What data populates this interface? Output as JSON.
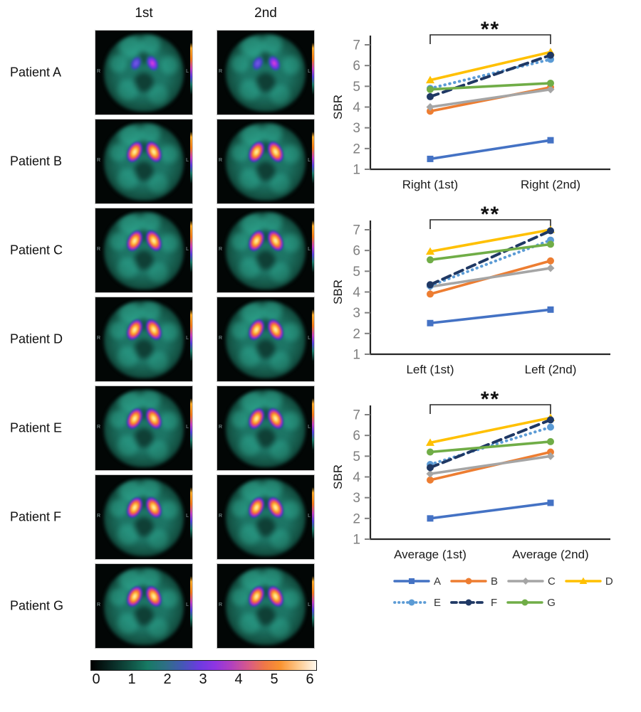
{
  "figure": {
    "scan_columns": [
      "1st",
      "2nd"
    ],
    "patients": [
      {
        "label": "Patient A",
        "uptake": "low"
      },
      {
        "label": "Patient B",
        "uptake": "high"
      },
      {
        "label": "Patient C",
        "uptake": "high"
      },
      {
        "label": "Patient D",
        "uptake": "high"
      },
      {
        "label": "Patient E",
        "uptake": "high"
      },
      {
        "label": "Patient F",
        "uptake": "high"
      },
      {
        "label": "Patient G",
        "uptake": "high"
      }
    ],
    "orientation": {
      "left": "R",
      "right": "L"
    },
    "colorbar": {
      "ticks": [
        "0",
        "1",
        "2",
        "3",
        "4",
        "5",
        "6"
      ],
      "gradient_stops": [
        "#000000 0%",
        "#082420 8%",
        "#0f4a3e 16%",
        "#177a64 25%",
        "#2e6f86 33%",
        "#4656b8 41%",
        "#6d3be0 48%",
        "#8e35e2 55%",
        "#b040c0 62%",
        "#d85a88 70%",
        "#ef7747 77%",
        "#fa9330 84%",
        "#fdc88c 92%",
        "#fff8ee 100%"
      ]
    },
    "scan_palette": {
      "background": "#020605",
      "brain_teal": "#1d7565",
      "hotspot_core": "#fff3cf",
      "hotspot_rim": "#7b2be0"
    }
  },
  "legend": {
    "entries": [
      {
        "label": "A",
        "color": "#4472C4",
        "marker": "square",
        "dash": "solid"
      },
      {
        "label": "B",
        "color": "#ED7D31",
        "marker": "circle",
        "dash": "solid"
      },
      {
        "label": "C",
        "color": "#A5A5A5",
        "marker": "diamond",
        "dash": "solid"
      },
      {
        "label": "D",
        "color": "#FFC000",
        "marker": "triangle",
        "dash": "solid"
      },
      {
        "label": "E",
        "color": "#5B9BD5",
        "marker": "circle",
        "dash": "dotted"
      },
      {
        "label": "F",
        "color": "#1F3864",
        "marker": "circle",
        "dash": "dashed"
      },
      {
        "label": "G",
        "color": "#70AD47",
        "marker": "circle",
        "dash": "solid"
      }
    ]
  },
  "chart_data": [
    {
      "type": "line",
      "ylabel": "SBR",
      "ylim": [
        1,
        7
      ],
      "yticks": [
        1,
        2,
        3,
        4,
        5,
        6,
        7
      ],
      "annotation": "**",
      "categories": [
        "Right (1st)",
        "Right (2nd)"
      ],
      "series": [
        {
          "name": "A",
          "values": [
            1.5,
            2.4
          ]
        },
        {
          "name": "B",
          "values": [
            3.8,
            4.95
          ]
        },
        {
          "name": "C",
          "values": [
            4.0,
            4.85
          ]
        },
        {
          "name": "D",
          "values": [
            5.3,
            6.65
          ]
        },
        {
          "name": "E",
          "values": [
            4.9,
            6.3
          ]
        },
        {
          "name": "F",
          "values": [
            4.5,
            6.5
          ]
        },
        {
          "name": "G",
          "values": [
            4.85,
            5.15
          ]
        }
      ]
    },
    {
      "type": "line",
      "ylabel": "SBR",
      "ylim": [
        1,
        7
      ],
      "yticks": [
        1,
        2,
        3,
        4,
        5,
        6,
        7
      ],
      "annotation": "**",
      "categories": [
        "Left (1st)",
        "Left (2nd)"
      ],
      "series": [
        {
          "name": "A",
          "values": [
            2.5,
            3.15
          ]
        },
        {
          "name": "B",
          "values": [
            3.9,
            5.5
          ]
        },
        {
          "name": "C",
          "values": [
            4.25,
            5.15
          ]
        },
        {
          "name": "D",
          "values": [
            5.95,
            7.0
          ]
        },
        {
          "name": "E",
          "values": [
            4.3,
            6.5
          ]
        },
        {
          "name": "F",
          "values": [
            4.35,
            6.95
          ]
        },
        {
          "name": "G",
          "values": [
            5.55,
            6.3
          ]
        }
      ]
    },
    {
      "type": "line",
      "ylabel": "SBR",
      "ylim": [
        1,
        7
      ],
      "yticks": [
        1,
        2,
        3,
        4,
        5,
        6,
        7
      ],
      "annotation": "**",
      "categories": [
        "Average (1st)",
        "Average (2nd)"
      ],
      "series": [
        {
          "name": "A",
          "values": [
            2.0,
            2.75
          ]
        },
        {
          "name": "B",
          "values": [
            3.85,
            5.2
          ]
        },
        {
          "name": "C",
          "values": [
            4.15,
            5.0
          ]
        },
        {
          "name": "D",
          "values": [
            5.65,
            6.85
          ]
        },
        {
          "name": "E",
          "values": [
            4.6,
            6.4
          ]
        },
        {
          "name": "F",
          "values": [
            4.45,
            6.75
          ]
        },
        {
          "name": "G",
          "values": [
            5.2,
            5.7
          ]
        }
      ]
    }
  ]
}
